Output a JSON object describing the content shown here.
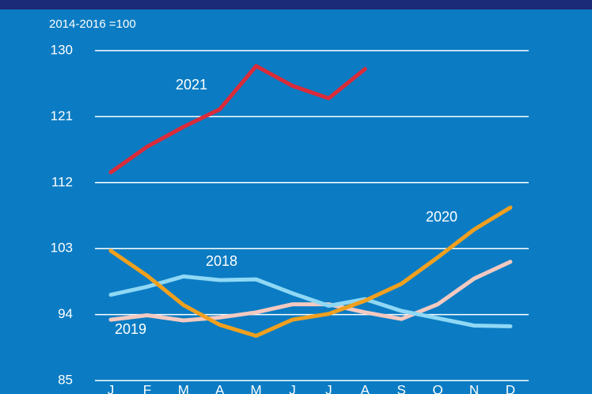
{
  "chart_data": {
    "type": "line",
    "subtitle": "2014-2016 =100",
    "categories": [
      "J",
      "F",
      "M",
      "A",
      "M",
      "J",
      "J",
      "A",
      "S",
      "O",
      "N",
      "D"
    ],
    "series": [
      {
        "name": "2021",
        "color": "#d92b3a",
        "values": [
          113.4,
          116.9,
          119.6,
          122.0,
          127.9,
          125.2,
          123.5,
          127.5,
          null,
          null,
          null,
          null
        ]
      },
      {
        "name": "2020",
        "color": "#f0a01e",
        "values": [
          102.7,
          99.3,
          95.3,
          92.6,
          91.1,
          93.3,
          94.1,
          95.9,
          98.2,
          101.8,
          105.6,
          108.6
        ]
      },
      {
        "name": "2018",
        "color": "#8fd8f5",
        "values": [
          96.7,
          97.8,
          99.2,
          98.7,
          98.8,
          96.9,
          95.2,
          96.1,
          94.5,
          93.5,
          92.5,
          92.4
        ]
      },
      {
        "name": "2019",
        "color": "#f3c9c0",
        "values": [
          93.3,
          93.9,
          93.2,
          93.6,
          94.3,
          95.4,
          95.4,
          94.3,
          93.4,
          95.4,
          98.9,
          101.2
        ]
      }
    ],
    "ylim": [
      85,
      130
    ],
    "yticks": [
      85,
      94,
      103,
      112,
      121,
      130
    ],
    "grid": true
  }
}
